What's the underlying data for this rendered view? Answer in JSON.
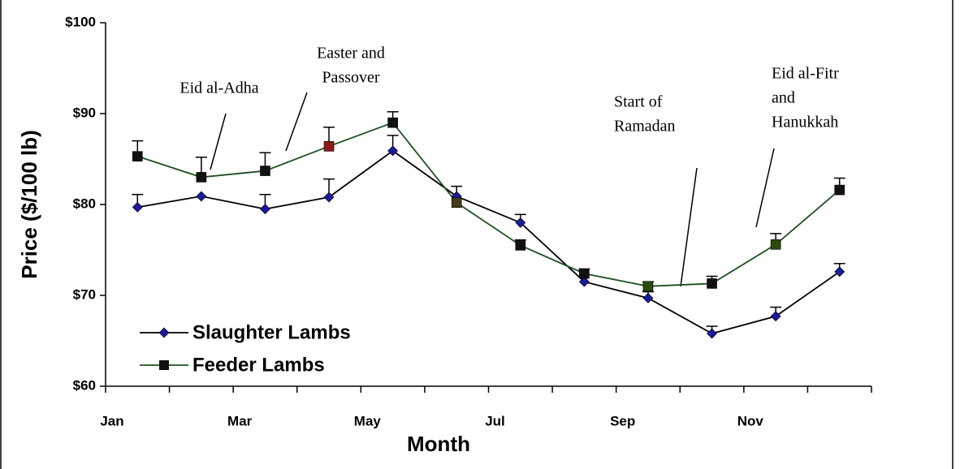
{
  "chart_data": {
    "type": "line",
    "x_label": "Month",
    "y_label": "Price ($/100 lb)",
    "categories": [
      "Jan",
      null,
      "Mar",
      null,
      "May",
      null,
      "Jul",
      null,
      "Sep",
      null,
      "Nov",
      null
    ],
    "ylim": [
      60,
      100
    ],
    "yticks": [
      {
        "value": 60,
        "label": "$60"
      },
      {
        "value": 70,
        "label": "$70"
      },
      {
        "value": 80,
        "label": "$80"
      },
      {
        "value": 90,
        "label": "$90"
      },
      {
        "value": 100,
        "label": "$100"
      }
    ],
    "legend": "lower left",
    "series": [
      {
        "name": "Slaughter Lambs",
        "color": "#1a1a9a",
        "line_color": "#000000",
        "marker": "diamond",
        "values": [
          79.7,
          80.9,
          79.5,
          80.8,
          85.9,
          80.9,
          78.0,
          71.5,
          69.7,
          65.8,
          67.7,
          72.6
        ],
        "errors": [
          1.4,
          null,
          1.6,
          2.0,
          1.7,
          1.1,
          0.9,
          null,
          0.7,
          0.8,
          1.0,
          0.9
        ]
      },
      {
        "name": "Feeder Lambs",
        "color": "#111111",
        "line_color": "#1f4f1f",
        "marker": "square",
        "marker_colors": [
          "#111111",
          "#111111",
          "#111111",
          "#8b1a1a",
          "#111111",
          "#4a3a1a",
          "#111111",
          "#111111",
          "#2a4a10",
          "#111111",
          "#2a4a10",
          "#111111"
        ],
        "values": [
          85.3,
          83.0,
          83.7,
          86.4,
          89.0,
          80.2,
          75.5,
          72.4,
          71.0,
          71.3,
          75.6,
          81.6
        ],
        "errors": [
          1.7,
          2.2,
          2.0,
          2.1,
          1.2,
          null,
          0.6,
          0.5,
          0.5,
          0.8,
          1.2,
          1.3
        ]
      }
    ],
    "annotations": [
      [
        "Eid al-Adha"
      ],
      [
        "Easter and",
        "Passover"
      ],
      [
        "Start of",
        "Ramadan"
      ],
      [
        "Eid al-Fitr",
        "and",
        "Hanukkah"
      ]
    ]
  }
}
